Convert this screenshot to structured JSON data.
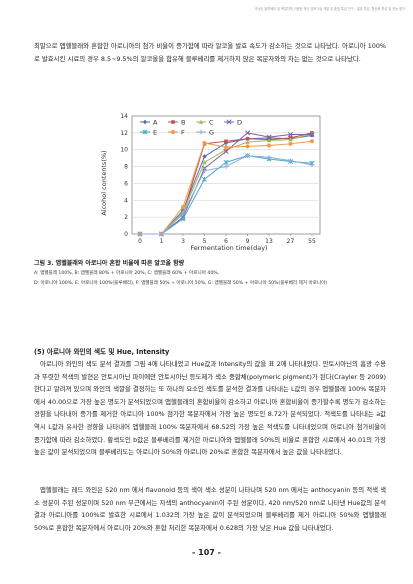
{
  "header": "국내산 블루베리 및 복분자를 이용한 와인 양조기술 개발 및 품질 특성 연구 - 발효 특성, 항산화 활성 및 관능 평가",
  "paragraphs": {
    "p1": "최말으로 앱헬블래와 혼합한 아로니아의 첨가 비율이 증가함에 따라 알코올 발효 속도가 감소하는 것으로 나타났다. 아로니아 100%로 발효시킨 시료의 경우 8.5~9.5%의 알코올을 함유해 블루베리를 제거하지 않은 복분자와의 차는 없는 것으로 나타났다.",
    "p2": "아로니아 와인의 색도 및 Hue, Intensity",
    "p3": "아로니아 와인의 색도 분석 결과를 그림 4에 나타내었고 Hue값과 Intensity의 값을 표 2에 나타내었다. 안토시아닌의 흡광 수용과 뚜렷한 적색의 발현은 안토시아닌 파이에만 안토시아닌 등도제가 색소 중합체(polymeric pigment)가 된다(Crayler 등 2009)한다고 알려져 있으며 와인의 색깔을 결정하는 또 하나의 요소인 색도를 분석한 결과를 나타내는 L값의 경우 앱헬블래 100% 복분자에서 40.00으로 가장 높은 명도가 분석되었으며 앱헬블래의 혼합비율이 감소하고 아로니아 혼합비율이 증가할수록 명도가 감소하는 경향을 나타내어 증가를 제거한 아로니아 100% 첨가한 복분자에서 가장 높은 명도인 8.72가 분석되었다. 적색도를 나타내는 a값 역시 L값과 유사한 경향을 나타내어 앱헬블래 100% 복분자에서 68.52의 가장 높은 적색도를 나타내었으며 아로니아 첨가비율이 증가함에 따라 감소하였다. 황색도인 b값은 블루베리를 제거한 아로니아와 앱헬블래 50%의 비율로 혼합한 시료에서 40.01의 가장 높은 값이 분석되었으며 블루베리도는 아로니아 50%와 아로니아 20%로 혼합한 복분자에서 높은 값을 나타내었다.",
    "p4": "앱헬블래는 레드 와인은 520 nm 에서 flavonoid 등의 색이 색소 성분이 나타나며 520 nm 에서는 anthocyanin 등의 적색 색소 성분이 주된 성분이며 520 nm 부근에서는 자색의 anthocyanin이 주된 성분이다. 420 nm/520 nm로 나타낸 Hue값의 분석 결과 아로니아를 100%로 발효한 시료에서 1.032의 가장 높은 값이 분석되었으며 블루베리를 제거 아로니아 50%와 앱헬블래 50%로 혼합한 복분자에서 아로니아 20%와 혼합 처리한 복분자에서 0.628의 가장 낮은 Hue 값을 나타내었다."
  },
  "caption": "그림 3. 앱헬블래와 아로니아 혼합 비율에 따른 알코올 함량",
  "footnotes": [
    "A: 앱헬블래 100%, B: 앱헬블래 80% + 아로니아 20%, C: 앱헬블래 60% + 아로니아 40%,",
    "D: 아로니아 100%, E: 아로니아 100%(블루베리), F: 앱헬블래 50% + 아로니아 50%, G: 앱헬블래 50% + 아로니아 50%(블루베리 제거 아로니아)"
  ],
  "page_number": "- 107 -",
  "chart_data": {
    "type": "line",
    "x": [
      "0",
      "1",
      "3",
      "5",
      "6",
      "9",
      "13",
      "27",
      "55"
    ],
    "xlabel": "Fermentation time(day)",
    "ylabel": "Alcohol contents(%)",
    "ylim": [
      0,
      14
    ],
    "yticks": [
      0,
      2,
      4,
      6,
      8,
      10,
      12,
      14
    ],
    "legend_position": "top-left",
    "series": [
      {
        "name": "A",
        "color": "#4a6fb5",
        "marker": "diamond",
        "values": [
          0,
          0,
          2.8,
          9.2,
          10.8,
          11.3,
          11.4,
          11.3,
          11.7
        ]
      },
      {
        "name": "B",
        "color": "#c0504d",
        "marker": "square",
        "values": [
          0,
          0,
          2.5,
          10.7,
          11.0,
          11.3,
          11.2,
          11.4,
          12.0
        ]
      },
      {
        "name": "C",
        "color": "#9bbb59",
        "marker": "triangle",
        "values": [
          0,
          0,
          2.6,
          8.5,
          10.0,
          10.9,
          11.1,
          11.2,
          11.9
        ]
      },
      {
        "name": "D",
        "color": "#7f5fa0",
        "marker": "x",
        "values": [
          0,
          0,
          2.0,
          7.8,
          9.8,
          12.0,
          11.5,
          11.8,
          11.8
        ]
      },
      {
        "name": "E",
        "color": "#4bacc6",
        "marker": "asterisk",
        "values": [
          0,
          0,
          1.8,
          6.5,
          8.5,
          9.3,
          8.9,
          8.6,
          8.4
        ]
      },
      {
        "name": "F",
        "color": "#f79646",
        "marker": "circle",
        "values": [
          0,
          0,
          3.2,
          10.8,
          10.3,
          10.4,
          10.5,
          10.7,
          11.0
        ]
      },
      {
        "name": "G",
        "color": "#8faadc",
        "marker": "plus",
        "values": [
          0,
          0,
          2.4,
          7.5,
          8.0,
          9.3,
          9.1,
          8.7,
          8.2
        ]
      }
    ]
  }
}
